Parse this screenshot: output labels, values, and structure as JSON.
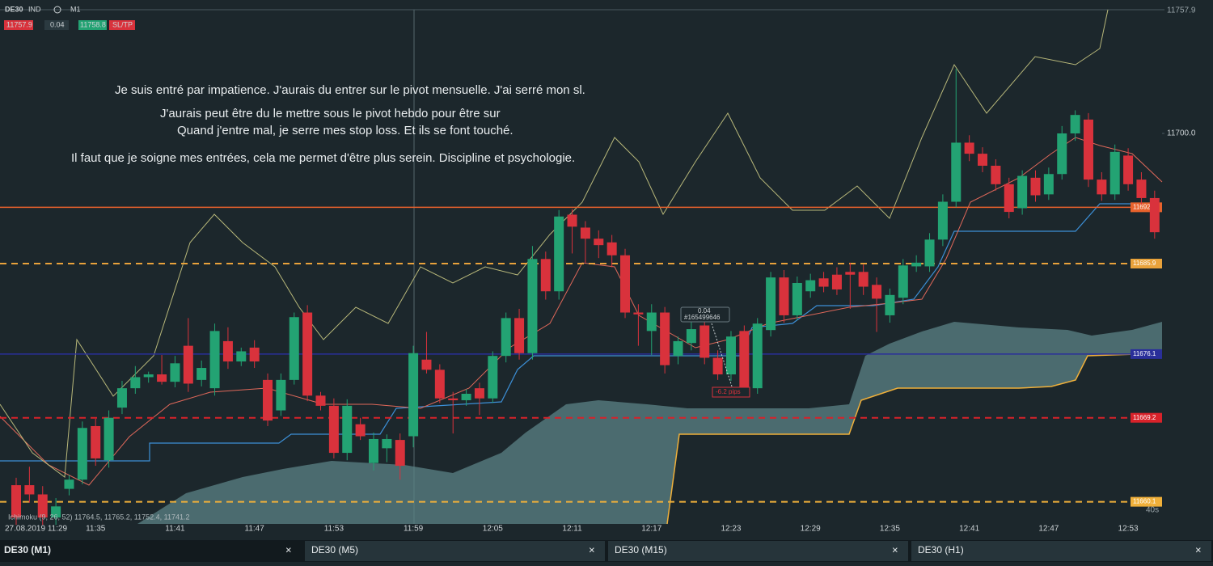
{
  "toolbar": {
    "symbol": "DE30",
    "market": "IND",
    "timeframe": "M1",
    "sell": "11757.9",
    "volume": "0.04",
    "buy": "11758.8",
    "sltp": "SL/TP"
  },
  "annotations": [
    "Je suis entré par impatience. J'aurais du entrer sur le pivot mensuelle. J'ai serré mon sl.",
    "J'aurais peut être du le mettre sous le pivot hebdo pour être sur",
    "Quand j'entre mal, je serre mes stop loss. Et ils se font touché.",
    "Il faut que je soigne mes entrées, cela me permet d'être plus serein. Discipline et psychologie."
  ],
  "chart_data": {
    "type": "candlestick",
    "ylim": [
      11657.7,
      11713.4
    ],
    "yticks": [
      {
        "value": 11700.0,
        "label": "11700.0"
      }
    ],
    "top_price": "11757.9",
    "levels": [
      {
        "value": 11692.0,
        "label": "11692.0",
        "color": "#e8622c",
        "style": "solid"
      },
      {
        "value": 11685.9,
        "label": "11685.9",
        "color": "#e9a23b",
        "style": "dashed"
      },
      {
        "value": 11676.1,
        "label": "11676.1",
        "color": "#2a2f9a",
        "style": "solid"
      },
      {
        "value": 11669.2,
        "label": "11669.2",
        "color": "#d8222a",
        "style": "dashed"
      },
      {
        "value": 11660.1,
        "label": "11660.1",
        "color": "#f0b03a",
        "style": "dashed"
      }
    ],
    "up_color": "#23a373",
    "down_color": "#d9323c",
    "time_labels": [
      "27.08.2019 11:29",
      "11:35",
      "11:41",
      "11:47",
      "11:53",
      "11:59",
      "12:05",
      "12:11",
      "12:17",
      "12:23",
      "12:29",
      "12:35",
      "12:41",
      "12:47",
      "12:53"
    ],
    "candles": [
      [
        11661.9,
        11662.7,
        11657.6,
        11658.4
      ],
      [
        11661.9,
        11663.9,
        11660.0,
        11660.9
      ],
      [
        11660.9,
        11661.8,
        11657.6,
        11658.4
      ],
      [
        11658.4,
        11660.5,
        11657.6,
        11659.6
      ],
      [
        11661.5,
        11663.0,
        11660.8,
        11662.5
      ],
      [
        11662.5,
        11668.8,
        11662.0,
        11668.1
      ],
      [
        11668.3,
        11669.1,
        11664.0,
        11664.8
      ],
      [
        11664.6,
        11670.0,
        11663.8,
        11669.2
      ],
      [
        11670.3,
        11673.2,
        11669.6,
        11672.4
      ],
      [
        11672.4,
        11674.8,
        11671.8,
        11673.6
      ],
      [
        11673.6,
        11674.2,
        11673.0,
        11673.9
      ],
      [
        11673.9,
        11676.0,
        11672.8,
        11673.1
      ],
      [
        11673.1,
        11675.9,
        11672.5,
        11675.1
      ],
      [
        11677.0,
        11680.0,
        11672.0,
        11672.9
      ],
      [
        11673.3,
        11675.4,
        11672.6,
        11674.6
      ],
      [
        11672.4,
        11679.4,
        11671.6,
        11678.6
      ],
      [
        11677.5,
        11679.0,
        11674.5,
        11675.3
      ],
      [
        11675.3,
        11676.8,
        11674.8,
        11676.4
      ],
      [
        11676.8,
        11677.6,
        11674.6,
        11675.3
      ],
      [
        11673.3,
        11674.0,
        11668.3,
        11668.9
      ],
      [
        11670.0,
        11674.0,
        11669.4,
        11673.3
      ],
      [
        11673.3,
        11680.6,
        11672.8,
        11680.1
      ],
      [
        11680.6,
        11681.4,
        11671.0,
        11671.6
      ],
      [
        11671.6,
        11672.0,
        11670.0,
        11670.5
      ],
      [
        11670.5,
        11671.3,
        11664.8,
        11665.4
      ],
      [
        11665.4,
        11671.2,
        11664.6,
        11670.5
      ],
      [
        11668.5,
        11669.2,
        11666.8,
        11667.2
      ],
      [
        11664.3,
        11667.6,
        11663.5,
        11666.9
      ],
      [
        11665.9,
        11667.4,
        11664.4,
        11666.9
      ],
      [
        11666.8,
        11667.5,
        11662.5,
        11664.0
      ],
      [
        11667.2,
        11677.0,
        11666.0,
        11676.2
      ],
      [
        11675.5,
        11678.5,
        11674.0,
        11674.4
      ],
      [
        11674.4,
        11675.0,
        11670.8,
        11671.3
      ],
      [
        11671.3,
        11672.0,
        11667.5,
        11671.1
      ],
      [
        11671.1,
        11672.3,
        11670.5,
        11671.8
      ],
      [
        11672.4,
        11673.0,
        11669.5,
        11671.3
      ],
      [
        11671.3,
        11676.4,
        11670.8,
        11675.9
      ],
      [
        11675.9,
        11680.6,
        11675.2,
        11680.0
      ],
      [
        11680.0,
        11681.0,
        11675.5,
        11676.2
      ],
      [
        11676.2,
        11687.8,
        11675.5,
        11686.4
      ],
      [
        11686.4,
        11687.2,
        11682.0,
        11682.9
      ],
      [
        11682.9,
        11691.7,
        11682.0,
        11691.0
      ],
      [
        11691.2,
        11691.8,
        11687.0,
        11689.9
      ],
      [
        11689.8,
        11690.5,
        11686.0,
        11688.6
      ],
      [
        11688.6,
        11689.5,
        11686.5,
        11687.9
      ],
      [
        11688.2,
        11689.0,
        11685.5,
        11686.8
      ],
      [
        11686.8,
        11687.5,
        11680.0,
        11680.6
      ],
      [
        11680.6,
        11681.5,
        11677.0,
        11680.4
      ],
      [
        11678.6,
        11681.5,
        11676.0,
        11680.6
      ],
      [
        11680.6,
        11681.2,
        11674.0,
        11674.9
      ],
      [
        11675.9,
        11678.0,
        11675.0,
        11677.5
      ],
      [
        11677.3,
        11681.0,
        11676.5,
        11678.8
      ],
      [
        11679.2,
        11680.0,
        11675.0,
        11675.7
      ],
      [
        11675.7,
        11676.5,
        11673.3,
        11673.9
      ],
      [
        11673.9,
        11678.6,
        11673.2,
        11678.0
      ],
      [
        11678.6,
        11679.2,
        11671.8,
        11672.4
      ],
      [
        11672.4,
        11680.0,
        11671.8,
        11679.4
      ],
      [
        11678.7,
        11685.0,
        11678.0,
        11684.4
      ],
      [
        11684.4,
        11685.2,
        11679.5,
        11680.3
      ],
      [
        11680.3,
        11684.5,
        11679.8,
        11683.8
      ],
      [
        11682.9,
        11684.8,
        11682.2,
        11684.1
      ],
      [
        11684.3,
        11685.0,
        11682.8,
        11683.4
      ],
      [
        11684.7,
        11685.5,
        11682.5,
        11683.1
      ],
      [
        11685.0,
        11686.0,
        11681.0,
        11684.7
      ],
      [
        11685.0,
        11685.8,
        11682.5,
        11683.4
      ],
      [
        11683.6,
        11684.4,
        11678.5,
        11682.1
      ],
      [
        11680.3,
        11683.2,
        11679.5,
        11682.5
      ],
      [
        11682.2,
        11686.4,
        11681.5,
        11685.7
      ],
      [
        11685.6,
        11686.8,
        11685.0,
        11686.0
      ],
      [
        11685.6,
        11689.2,
        11685.0,
        11688.5
      ],
      [
        11688.5,
        11693.4,
        11687.8,
        11692.6
      ],
      [
        11692.6,
        11707.0,
        11692.0,
        11699.0
      ],
      [
        11699.0,
        11699.8,
        11697.0,
        11697.8
      ],
      [
        11697.8,
        11698.5,
        11695.8,
        11696.5
      ],
      [
        11696.5,
        11697.2,
        11693.8,
        11694.5
      ],
      [
        11694.5,
        11695.2,
        11690.8,
        11691.5
      ],
      [
        11691.9,
        11696.0,
        11691.2,
        11695.4
      ],
      [
        11695.2,
        11696.0,
        11692.6,
        11693.3
      ],
      [
        11693.4,
        11696.3,
        11692.8,
        11695.6
      ],
      [
        11695.6,
        11700.8,
        11695.0,
        11700.0
      ],
      [
        11700.0,
        11702.5,
        11699.2,
        11702.0
      ],
      [
        11701.5,
        11702.2,
        11694.2,
        11695.0
      ],
      [
        11695.0,
        11695.8,
        11692.7,
        11693.4
      ],
      [
        11693.4,
        11698.8,
        11692.8,
        11698.0
      ],
      [
        11697.6,
        11698.4,
        11693.8,
        11694.5
      ],
      [
        11695.0,
        11695.8,
        11692.3,
        11693.0
      ],
      [
        11693.0,
        11693.8,
        11688.6,
        11689.3
      ]
    ],
    "indicator": "Ichimoku (9, 26, 52) 11764.5, 11765.2, 11752.4, 11741.2",
    "trade": {
      "volume": "0.04",
      "ticket": "#165499646",
      "result": "-6.2 pips"
    },
    "countdown": "40s"
  },
  "tabs": [
    "DE30 (M1)",
    "DE30 (M5)",
    "DE30 (M15)",
    "DE30 (H1)"
  ],
  "tab_close": "×"
}
